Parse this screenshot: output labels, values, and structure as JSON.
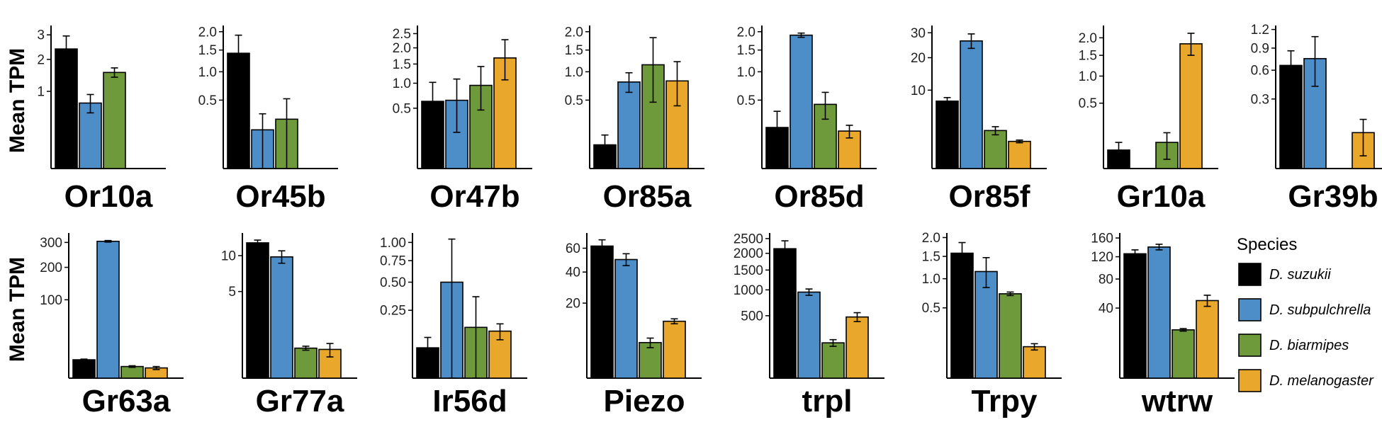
{
  "chart_data": {
    "type": "bar",
    "ylabel": "Mean TPM",
    "yscale": "sqrt",
    "legend": {
      "title": "Species",
      "placement": "right",
      "entries": [
        {
          "name": "D. suzukii",
          "color": "#000000"
        },
        {
          "name": "D. subpulchrella",
          "color": "#4d8ec9"
        },
        {
          "name": "D. biarmipes",
          "color": "#6f9a3c"
        },
        {
          "name": "D. melanogaster",
          "color": "#e9a82c"
        }
      ]
    },
    "panels": [
      {
        "title": "Or10a",
        "ticks": [
          1,
          2,
          3
        ],
        "tick_labels": [
          "1",
          "2",
          "3"
        ],
        "ymax": 3.3,
        "values": [
          2.4,
          0.72,
          1.55,
          0.0
        ],
        "errors": [
          0.55,
          0.2,
          0.15,
          0.0
        ]
      },
      {
        "title": "Or45b",
        "ticks": [
          0.5,
          1.0,
          1.5,
          2.0
        ],
        "tick_labels": [
          "0.5",
          "1.0",
          "1.5",
          "2.0"
        ],
        "ymax": 2.1,
        "values": [
          1.42,
          0.16,
          0.26,
          0.0
        ],
        "errors": [
          0.48,
          0.16,
          0.26,
          0.0
        ]
      },
      {
        "title": "Or47b",
        "ticks": [
          0.5,
          1.0,
          1.5,
          2.0,
          2.5
        ],
        "tick_labels": [
          "0.5",
          "1.0",
          "1.5",
          "2.0",
          "2.5"
        ],
        "ymax": 2.7,
        "values": [
          0.62,
          0.64,
          0.95,
          1.68
        ],
        "errors": [
          0.4,
          0.46,
          0.48,
          0.6
        ]
      },
      {
        "title": "Or85a",
        "ticks": [
          0.5,
          1.0,
          1.5,
          2.0
        ],
        "tick_labels": [
          "0.5",
          "1.0",
          "1.5",
          "2.0"
        ],
        "ymax": 2.1,
        "values": [
          0.06,
          0.8,
          1.15,
          0.82
        ],
        "errors": [
          0.06,
          0.18,
          0.68,
          0.4
        ]
      },
      {
        "title": "Or85d",
        "ticks": [
          0.5,
          1.0,
          1.5,
          2.0
        ],
        "tick_labels": [
          "0.5",
          "1.0",
          "1.5",
          "2.0"
        ],
        "ymax": 2.1,
        "values": [
          0.18,
          1.9,
          0.44,
          0.15
        ],
        "errors": [
          0.17,
          0.06,
          0.18,
          0.05
        ]
      },
      {
        "title": "Or85f",
        "ticks": [
          10,
          20,
          30
        ],
        "tick_labels": [
          "10",
          "20",
          "30"
        ],
        "ymax": 32,
        "values": [
          7.4,
          26.5,
          2.35,
          1.2
        ],
        "errors": [
          0.8,
          3.0,
          0.5,
          0.12
        ]
      },
      {
        "title": "Gr10a",
        "ticks": [
          0.5,
          1.0,
          1.5,
          2.0
        ],
        "tick_labels": [
          "0.5",
          "1.0",
          "1.5",
          "2.0"
        ],
        "ymax": 2.3,
        "values": [
          0.04,
          0.0,
          0.08,
          1.82
        ],
        "errors": [
          0.04,
          0.0,
          0.07,
          0.32
        ]
      },
      {
        "title": "Gr39b",
        "ticks": [
          0.3,
          0.6,
          0.9,
          1.2
        ],
        "tick_labels": [
          "0.3",
          "0.6",
          "0.9",
          "1.2"
        ],
        "ymax": 1.22,
        "values": [
          0.66,
          0.75,
          0.0,
          0.08
        ],
        "errors": [
          0.2,
          0.33,
          0.0,
          0.07
        ]
      },
      {
        "title": "Gr63a",
        "ticks": [
          100,
          200,
          300
        ],
        "tick_labels": [
          "100",
          "200",
          "300"
        ],
        "ymax": 330,
        "values": [
          5.5,
          305,
          2.2,
          1.7
        ],
        "errors": [
          0.4,
          3.5,
          0.3,
          0.5
        ]
      },
      {
        "title": "Gr77a",
        "ticks": [
          5,
          10
        ],
        "tick_labels": [
          "5",
          "10"
        ],
        "ymax": 13.5,
        "values": [
          12.2,
          9.8,
          0.6,
          0.55
        ],
        "errors": [
          0.5,
          1.0,
          0.08,
          0.25
        ]
      },
      {
        "title": "Ir56d",
        "ticks": [
          0.25,
          0.5,
          0.75,
          1.0
        ],
        "tick_labels": [
          "0.25",
          "0.50",
          "0.75",
          "1.00"
        ],
        "ymax": 1.1,
        "values": [
          0.05,
          0.5,
          0.14,
          0.12
        ],
        "errors": [
          0.04,
          0.55,
          0.22,
          0.04
        ]
      },
      {
        "title": "Piezo",
        "ticks": [
          20,
          40,
          60
        ],
        "tick_labels": [
          "20",
          "40",
          "60"
        ],
        "ymax": 72,
        "values": [
          62,
          50,
          4.5,
          11.5
        ],
        "errors": [
          6.0,
          5.0,
          1.2,
          1.0
        ]
      },
      {
        "title": "trpl",
        "ticks": [
          500,
          1000,
          1500,
          2000,
          2500
        ],
        "tick_labels": [
          "500",
          "1000",
          "1500",
          "2000",
          "2500"
        ],
        "ymax": 2600,
        "values": [
          2150,
          950,
          160,
          480
        ],
        "errors": [
          270,
          70,
          30,
          70
        ]
      },
      {
        "title": "Trpy",
        "ticks": [
          0.5,
          1.0,
          1.5,
          2.0
        ],
        "tick_labels": [
          "0.5",
          "1.0",
          "1.5",
          "2.0"
        ],
        "ymax": 2.05,
        "values": [
          1.58,
          1.15,
          0.72,
          0.1
        ],
        "errors": [
          0.28,
          0.32,
          0.03,
          0.02
        ]
      },
      {
        "title": "wtrw",
        "ticks": [
          40,
          80,
          120,
          160
        ],
        "tick_labels": [
          "40",
          "80",
          "120",
          "160"
        ],
        "ymax": 165,
        "values": [
          126,
          140,
          19,
          49
        ],
        "errors": [
          8,
          6,
          1,
          7
        ]
      }
    ]
  }
}
